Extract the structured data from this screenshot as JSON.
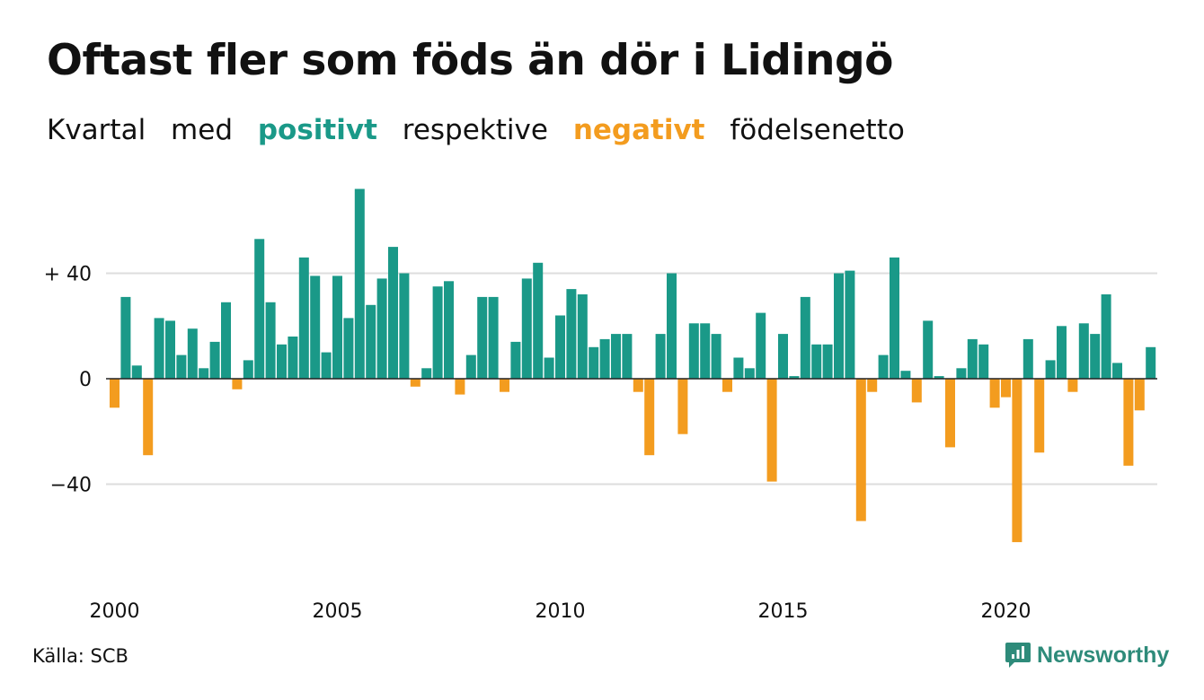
{
  "title": "Oftast fler som föds än dör i Lidingö",
  "subtitle": {
    "w1": "Kvartal",
    "w2": "med",
    "positive": "positivt",
    "w3": "respektive",
    "negative": "negativt",
    "w4": "födelsenetto"
  },
  "source": "Källa: SCB",
  "logo": "Newsworthy",
  "colors": {
    "positive": "#1a9988",
    "negative": "#f39c1f",
    "grid": "#dddddd",
    "text": "#111111"
  },
  "chart_data": {
    "type": "bar",
    "title": "Oftast fler som föds än dör i Lidingö",
    "xlabel": "",
    "ylabel": "",
    "ylim": [
      -72,
      74
    ],
    "yticks": [
      {
        "value": 40,
        "label": "+ 40"
      },
      {
        "value": 0,
        "label": "0"
      },
      {
        "value": -40,
        "label": "−40"
      }
    ],
    "xticks": [
      {
        "year": 2000,
        "label": "2000"
      },
      {
        "year": 2005,
        "label": "2005"
      },
      {
        "year": 2010,
        "label": "2010"
      },
      {
        "year": 2015,
        "label": "2015"
      },
      {
        "year": 2020,
        "label": "2020"
      }
    ],
    "start": "2000 Q1",
    "grid": true,
    "values": [
      -11,
      31,
      5,
      -29,
      23,
      22,
      9,
      19,
      4,
      14,
      29,
      -4,
      7,
      53,
      29,
      13,
      16,
      46,
      39,
      10,
      39,
      23,
      72,
      28,
      38,
      50,
      40,
      -3,
      4,
      35,
      37,
      -6,
      9,
      31,
      31,
      -5,
      14,
      38,
      44,
      8,
      24,
      34,
      32,
      12,
      15,
      17,
      17,
      -5,
      -29,
      17,
      40,
      -21,
      21,
      21,
      17,
      -5,
      8,
      4,
      25,
      -39,
      17,
      1,
      31,
      13,
      13,
      40,
      41,
      -54,
      -5,
      9,
      46,
      3,
      -9,
      22,
      1,
      -26,
      4,
      15,
      13,
      -11,
      -7,
      -62,
      15,
      -28,
      7,
      20,
      -5,
      21,
      17,
      32,
      6,
      -33,
      -12,
      12
    ]
  }
}
